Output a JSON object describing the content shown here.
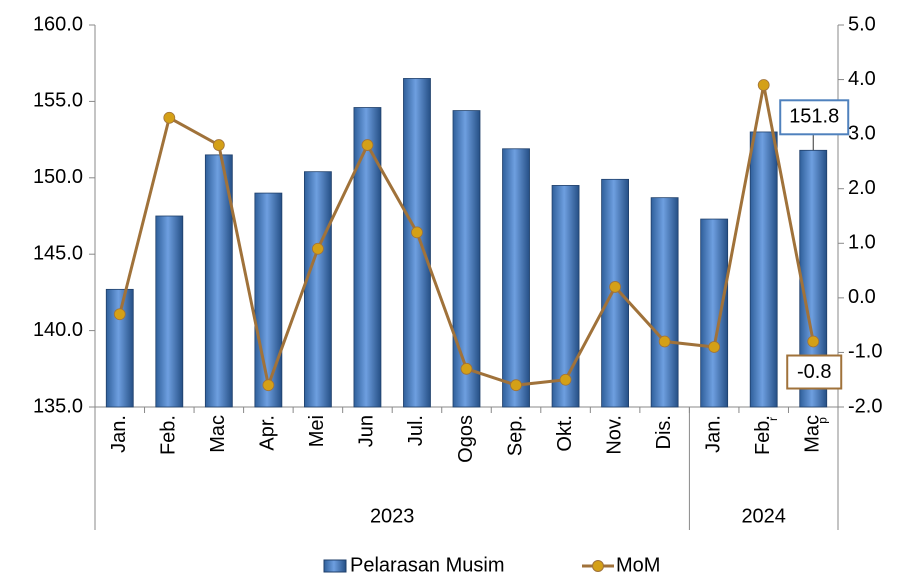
{
  "chart_data": {
    "type": "bar_line",
    "categories": [
      "Jan.",
      "Feb.",
      "Mac",
      "Apr.",
      "Mei",
      "Jun",
      "Jul.",
      "Ogos",
      "Sep.",
      "Okt.",
      "Nov.",
      "Dis.",
      "Jan.",
      "Feb.",
      "Mac"
    ],
    "category_notes": [
      null,
      null,
      null,
      null,
      null,
      null,
      null,
      null,
      null,
      null,
      null,
      null,
      null,
      "r",
      "p"
    ],
    "groups": [
      {
        "label": "2023",
        "count": 12
      },
      {
        "label": "2024",
        "count": 3
      }
    ],
    "series": [
      {
        "name": "Pelarasan Musim",
        "type": "bar",
        "color": "#4f81bd",
        "values": [
          142.7,
          147.5,
          151.5,
          149.0,
          150.4,
          154.6,
          156.5,
          154.4,
          151.9,
          149.5,
          149.9,
          148.7,
          147.3,
          153.0,
          151.8
        ],
        "value_labels": [
          null,
          null,
          null,
          null,
          null,
          null,
          null,
          null,
          null,
          null,
          null,
          null,
          null,
          null,
          "151.8"
        ]
      },
      {
        "name": "MoM",
        "type": "line",
        "axis": "y2",
        "color": "#a0723a",
        "marker_color": "#d4a017",
        "values": [
          -0.3,
          3.3,
          2.8,
          -1.6,
          0.9,
          2.8,
          1.2,
          -1.3,
          -1.6,
          -1.5,
          0.2,
          -0.8,
          -0.9,
          3.9,
          -0.8
        ],
        "value_labels": [
          null,
          null,
          null,
          null,
          null,
          null,
          null,
          null,
          null,
          null,
          null,
          null,
          null,
          null,
          "-0.8"
        ]
      }
    ],
    "ylim": [
      135,
      160
    ],
    "yticks": [
      {
        "value": 135,
        "label": "135.0"
      },
      {
        "value": 140,
        "label": "140.0"
      },
      {
        "value": 145,
        "label": "145.0"
      },
      {
        "value": 150,
        "label": "150.0"
      },
      {
        "value": 155,
        "label": "155.0"
      },
      {
        "value": 160,
        "label": "160.0"
      }
    ],
    "y2lim": [
      -2,
      5
    ],
    "y2ticks": [
      {
        "value": -2,
        "label": "-2.0"
      },
      {
        "value": -1,
        "label": "-1.0"
      },
      {
        "value": 0,
        "label": "0.0"
      },
      {
        "value": 1,
        "label": "1.0"
      },
      {
        "value": 2,
        "label": "2.0"
      },
      {
        "value": 3,
        "label": "3.0"
      },
      {
        "value": 4,
        "label": "4.0"
      },
      {
        "value": 5,
        "label": "5.0"
      }
    ],
    "legend": "bottom"
  }
}
